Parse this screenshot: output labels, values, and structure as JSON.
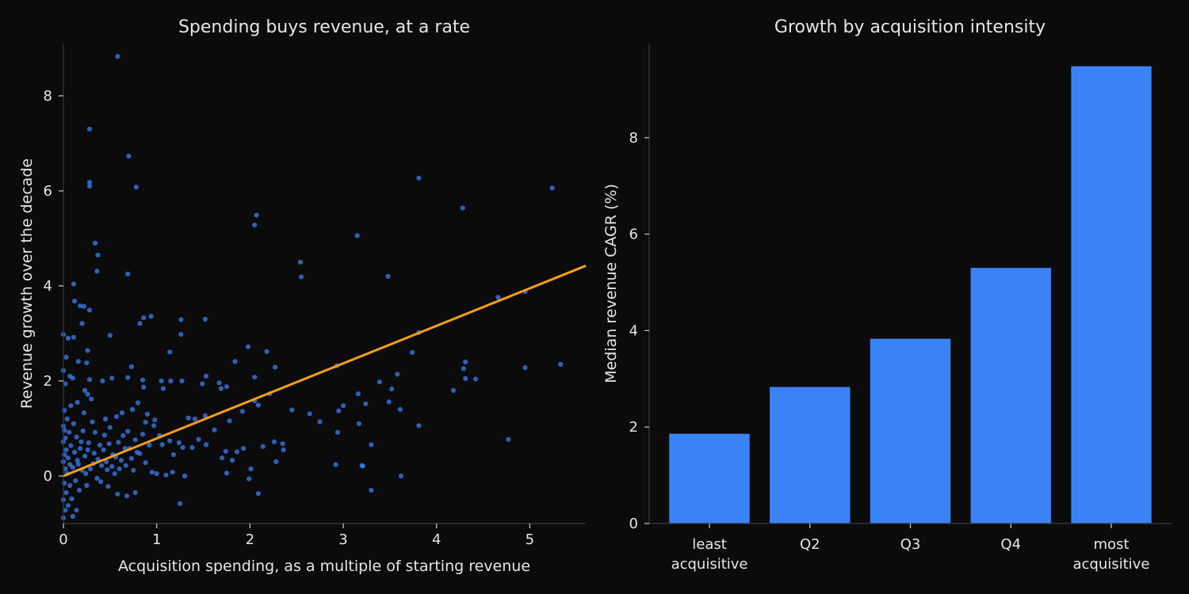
{
  "colors": {
    "background": "#0b0b0c",
    "points": "#3b82f6",
    "fit_line": "#f59e1b",
    "bars": "#3b82f6",
    "text": "#e6e6e6"
  },
  "chart_data": [
    {
      "type": "scatter",
      "title": "Spending buys revenue, at a rate",
      "xlabel": "Acquisition spending, as a multiple of starting revenue",
      "ylabel": "Revenue growth over the decade",
      "xlim": [
        0,
        5.6
      ],
      "ylim": [
        -1.0,
        9.1
      ],
      "xticks": [
        0,
        1,
        2,
        3,
        4,
        5
      ],
      "yticks": [
        0,
        2,
        4,
        6,
        8
      ],
      "grid": false,
      "fit_line": {
        "intercept": 0.0,
        "slope": 0.79
      },
      "series": [
        {
          "points": [
            [
              0.58,
              8.83
            ],
            [
              0.28,
              7.3
            ],
            [
              0.7,
              6.73
            ],
            [
              0.28,
              6.18
            ],
            [
              0.28,
              6.1
            ],
            [
              0.78,
              6.08
            ],
            [
              3.81,
              6.27
            ],
            [
              5.24,
              6.06
            ],
            [
              4.28,
              5.64
            ],
            [
              2.07,
              5.49
            ],
            [
              2.05,
              5.28
            ],
            [
              3.15,
              5.06
            ],
            [
              0.34,
              4.9
            ],
            [
              0.37,
              4.65
            ],
            [
              0.36,
              4.31
            ],
            [
              0.69,
              4.25
            ],
            [
              2.54,
              4.5
            ],
            [
              2.55,
              4.19
            ],
            [
              3.48,
              4.2
            ],
            [
              0.11,
              4.04
            ],
            [
              4.66,
              3.76
            ],
            [
              4.95,
              3.88
            ],
            [
              0.12,
              3.68
            ],
            [
              0.18,
              3.58
            ],
            [
              0.22,
              3.57
            ],
            [
              0.28,
              3.49
            ],
            [
              0.94,
              3.36
            ],
            [
              0.86,
              3.33
            ],
            [
              0.82,
              3.21
            ],
            [
              0.2,
              3.21
            ],
            [
              1.26,
              3.29
            ],
            [
              1.52,
              3.3
            ],
            [
              3.81,
              3.02
            ],
            [
              0.0,
              2.98
            ],
            [
              0.05,
              2.9
            ],
            [
              0.11,
              2.92
            ],
            [
              0.5,
              2.96
            ],
            [
              1.26,
              2.98
            ],
            [
              0.26,
              2.64
            ],
            [
              1.14,
              2.61
            ],
            [
              1.98,
              2.72
            ],
            [
              2.18,
              2.62
            ],
            [
              3.74,
              2.6
            ],
            [
              0.03,
              2.5
            ],
            [
              0.16,
              2.41
            ],
            [
              0.25,
              2.38
            ],
            [
              1.84,
              2.41
            ],
            [
              2.93,
              2.32
            ],
            [
              2.27,
              2.29
            ],
            [
              4.29,
              2.26
            ],
            [
              4.31,
              2.4
            ],
            [
              4.95,
              2.28
            ],
            [
              5.33,
              2.35
            ],
            [
              0.73,
              2.3
            ],
            [
              0.0,
              2.22
            ],
            [
              0.07,
              2.1
            ],
            [
              0.1,
              2.06
            ],
            [
              0.28,
              2.03
            ],
            [
              0.42,
              2.0
            ],
            [
              0.52,
              2.06
            ],
            [
              0.69,
              2.07
            ],
            [
              0.85,
              2.02
            ],
            [
              1.05,
              2.0
            ],
            [
              1.15,
              2.0
            ],
            [
              1.27,
              2.0
            ],
            [
              1.53,
              2.1
            ],
            [
              1.67,
              1.96
            ],
            [
              1.75,
              1.88
            ],
            [
              2.05,
              2.08
            ],
            [
              2.21,
              1.73
            ],
            [
              3.39,
              1.98
            ],
            [
              3.52,
              1.83
            ],
            [
              3.58,
              2.14
            ],
            [
              4.18,
              1.8
            ],
            [
              4.31,
              2.05
            ],
            [
              4.42,
              2.04
            ],
            [
              0.02,
              1.94
            ],
            [
              0.23,
              1.8
            ],
            [
              0.26,
              1.72
            ],
            [
              0.86,
              1.87
            ],
            [
              1.07,
              1.84
            ],
            [
              1.49,
              1.94
            ],
            [
              1.69,
              1.84
            ],
            [
              3.16,
              1.73
            ],
            [
              2.05,
              1.58
            ],
            [
              2.09,
              1.49
            ],
            [
              3.0,
              1.48
            ],
            [
              3.24,
              1.52
            ],
            [
              3.49,
              1.56
            ],
            [
              3.61,
              1.4
            ],
            [
              2.45,
              1.39
            ],
            [
              2.64,
              1.31
            ],
            [
              2.75,
              1.14
            ],
            [
              2.95,
              1.37
            ],
            [
              1.92,
              1.36
            ],
            [
              1.78,
              1.16
            ],
            [
              3.17,
              1.1
            ],
            [
              3.81,
              1.06
            ],
            [
              2.94,
              0.92
            ],
            [
              2.26,
              0.72
            ],
            [
              2.35,
              0.68
            ],
            [
              2.36,
              0.55
            ],
            [
              2.14,
              0.62
            ],
            [
              1.93,
              0.58
            ],
            [
              1.74,
              0.52
            ],
            [
              1.7,
              0.38
            ],
            [
              1.81,
              0.33
            ],
            [
              1.86,
              0.51
            ],
            [
              1.75,
              0.06
            ],
            [
              1.99,
              -0.06
            ],
            [
              2.09,
              -0.37
            ],
            [
              2.01,
              0.15
            ],
            [
              2.28,
              0.3
            ],
            [
              2.92,
              0.24
            ],
            [
              3.2,
              0.22
            ],
            [
              3.21,
              0.21
            ],
            [
              3.3,
              0.66
            ],
            [
              3.3,
              -0.3
            ],
            [
              3.62,
              0.0
            ],
            [
              4.77,
              0.77
            ],
            [
              1.25,
              -0.58
            ],
            [
              1.38,
              0.6
            ],
            [
              1.45,
              0.77
            ],
            [
              1.53,
              0.66
            ],
            [
              1.62,
              0.97
            ],
            [
              1.52,
              1.27
            ],
            [
              1.41,
              1.2
            ],
            [
              1.34,
              1.22
            ],
            [
              1.28,
              0.6
            ],
            [
              1.24,
              0.7
            ],
            [
              1.18,
              0.45
            ],
            [
              1.14,
              0.74
            ],
            [
              1.06,
              0.66
            ],
            [
              1.03,
              0.85
            ],
            [
              0.97,
              1.06
            ],
            [
              0.92,
              0.65
            ],
            [
              0.88,
              1.13
            ],
            [
              0.85,
              0.88
            ],
            [
              0.82,
              0.47
            ],
            [
              0.77,
              0.76
            ],
            [
              0.73,
              0.37
            ],
            [
              0.69,
              0.94
            ],
            [
              0.66,
              0.58
            ],
            [
              0.62,
              0.33
            ],
            [
              0.59,
              0.71
            ],
            [
              0.55,
              0.05
            ],
            [
              0.53,
              0.45
            ],
            [
              0.5,
              1.02
            ],
            [
              0.47,
              0.13
            ],
            [
              0.44,
              0.86
            ],
            [
              0.41,
              0.22
            ],
            [
              0.39,
              0.65
            ],
            [
              0.36,
              -0.05
            ],
            [
              0.33,
              0.48
            ],
            [
              0.31,
              1.14
            ],
            [
              0.29,
              0.15
            ],
            [
              0.27,
              0.7
            ],
            [
              0.25,
              -0.2
            ],
            [
              0.23,
              0.42
            ],
            [
              0.21,
              0.95
            ],
            [
              0.2,
              0.12
            ],
            [
              0.18,
              0.58
            ],
            [
              0.17,
              -0.3
            ],
            [
              0.15,
              0.33
            ],
            [
              0.14,
              0.82
            ],
            [
              0.13,
              -0.1
            ],
            [
              0.12,
              0.5
            ],
            [
              0.11,
              1.1
            ],
            [
              0.1,
              0.18
            ],
            [
              0.09,
              -0.48
            ],
            [
              0.08,
              0.64
            ],
            [
              0.07,
              0.24
            ],
            [
              0.07,
              -0.2
            ],
            [
              0.06,
              0.92
            ],
            [
              0.05,
              0.38
            ],
            [
              0.05,
              -0.62
            ],
            [
              0.04,
              1.2
            ],
            [
              0.04,
              0.05
            ],
            [
              0.03,
              0.55
            ],
            [
              0.03,
              -0.35
            ],
            [
              0.02,
              0.8
            ],
            [
              0.02,
              0.15
            ],
            [
              0.02,
              -0.72
            ],
            [
              0.01,
              1.38
            ],
            [
              0.01,
              0.45
            ],
            [
              0.01,
              -0.15
            ],
            [
              0.0,
              1.05
            ],
            [
              0.0,
              0.3
            ],
            [
              0.0,
              -0.5
            ],
            [
              0.0,
              0.72
            ],
            [
              0.0,
              -0.88
            ],
            [
              0.01,
              0.96
            ],
            [
              0.1,
              -0.85
            ],
            [
              0.14,
              -0.72
            ],
            [
              0.68,
              -0.42
            ],
            [
              0.58,
              -0.38
            ],
            [
              0.77,
              -0.35
            ],
            [
              0.88,
              0.28
            ],
            [
              0.95,
              0.08
            ],
            [
              1.0,
              0.05
            ],
            [
              1.1,
              0.02
            ],
            [
              1.17,
              0.08
            ],
            [
              1.3,
              0.0
            ],
            [
              0.48,
              -0.22
            ],
            [
              0.34,
              0.92
            ],
            [
              0.45,
              1.2
            ],
            [
              0.57,
              1.25
            ],
            [
              0.63,
              1.33
            ],
            [
              0.74,
              1.4
            ],
            [
              0.8,
              1.54
            ],
            [
              0.9,
              1.3
            ],
            [
              0.98,
              1.18
            ],
            [
              0.15,
              1.55
            ],
            [
              0.08,
              1.48
            ],
            [
              0.22,
              1.33
            ],
            [
              0.3,
              1.62
            ],
            [
              0.16,
              0.25
            ],
            [
              0.19,
              0.72
            ],
            [
              0.24,
              0.05
            ],
            [
              0.26,
              0.55
            ],
            [
              0.32,
              0.26
            ],
            [
              0.37,
              0.35
            ],
            [
              0.4,
              -0.12
            ],
            [
              0.43,
              0.55
            ],
            [
              0.46,
              0.3
            ],
            [
              0.49,
              0.68
            ],
            [
              0.52,
              0.2
            ],
            [
              0.56,
              0.4
            ],
            [
              0.6,
              0.15
            ],
            [
              0.64,
              0.85
            ],
            [
              0.67,
              0.22
            ],
            [
              0.71,
              0.58
            ],
            [
              0.75,
              0.12
            ],
            [
              0.79,
              0.5
            ]
          ]
        }
      ]
    },
    {
      "type": "bar",
      "title": "Growth by acquisition intensity",
      "xlabel": "",
      "ylabel": "Median revenue CAGR (%)",
      "categories": [
        "least\nacquisitive",
        "Q2",
        "Q3",
        "Q4",
        "most\nacquisitive"
      ],
      "values": [
        1.86,
        2.83,
        3.83,
        5.3,
        9.48
      ],
      "ylim": [
        0,
        9.95
      ],
      "yticks": [
        0,
        2,
        4,
        6,
        8
      ],
      "grid": false
    }
  ]
}
